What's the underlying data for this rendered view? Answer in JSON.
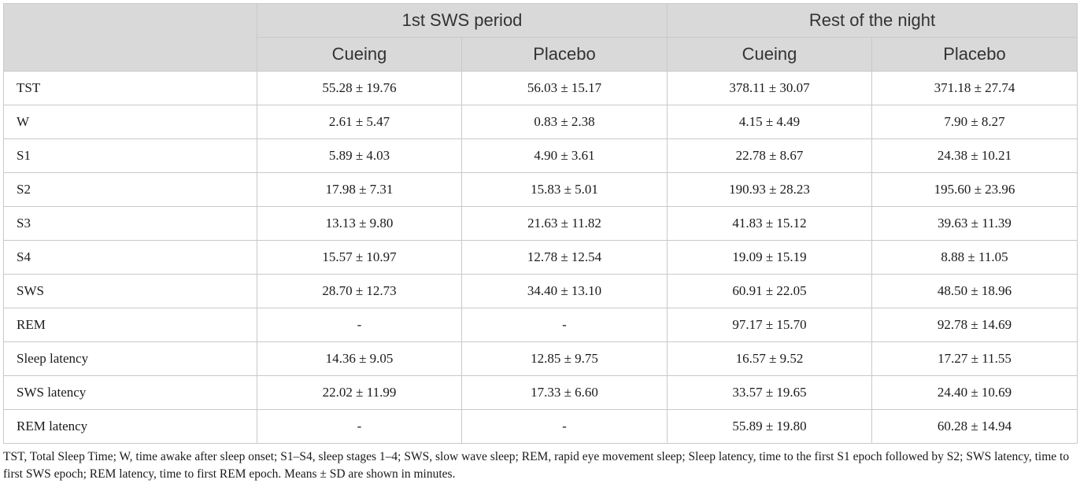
{
  "table": {
    "groups": [
      "1st SWS period",
      "Rest of the night"
    ],
    "subheaders": [
      "Cueing",
      "Placebo",
      "Cueing",
      "Placebo"
    ],
    "rows": [
      {
        "label": "TST",
        "values": [
          "55.28 ± 19.76",
          "56.03 ± 15.17",
          "378.11 ± 30.07",
          "371.18 ± 27.74"
        ]
      },
      {
        "label": "W",
        "values": [
          "2.61 ± 5.47",
          "0.83 ± 2.38",
          "4.15 ± 4.49",
          "7.90 ± 8.27"
        ]
      },
      {
        "label": "S1",
        "values": [
          "5.89 ± 4.03",
          "4.90 ± 3.61",
          "22.78 ± 8.67",
          "24.38 ± 10.21"
        ]
      },
      {
        "label": "S2",
        "values": [
          "17.98 ± 7.31",
          "15.83 ± 5.01",
          "190.93 ± 28.23",
          "195.60 ± 23.96"
        ]
      },
      {
        "label": "S3",
        "values": [
          "13.13 ± 9.80",
          "21.63 ± 11.82",
          "41.83 ± 15.12",
          "39.63 ± 11.39"
        ]
      },
      {
        "label": "S4",
        "values": [
          "15.57 ± 10.97",
          "12.78 ± 12.54",
          "19.09 ± 15.19",
          "8.88 ± 11.05"
        ]
      },
      {
        "label": "SWS",
        "values": [
          "28.70 ± 12.73",
          "34.40 ± 13.10",
          "60.91 ± 22.05",
          "48.50 ± 18.96"
        ]
      },
      {
        "label": "REM",
        "values": [
          "-",
          "-",
          "97.17 ± 15.70",
          "92.78 ± 14.69"
        ]
      },
      {
        "label": "Sleep latency",
        "values": [
          "14.36 ± 9.05",
          "12.85 ± 9.75",
          "16.57 ± 9.52",
          "17.27 ± 11.55"
        ]
      },
      {
        "label": "SWS latency",
        "values": [
          "22.02 ± 11.99",
          "17.33 ± 6.60",
          "33.57 ± 19.65",
          "24.40 ± 10.69"
        ]
      },
      {
        "label": "REM latency",
        "values": [
          "-",
          "-",
          "55.89 ± 19.80",
          "60.28 ± 14.94"
        ]
      }
    ]
  },
  "footnote": "TST, Total Sleep Time; W, time awake after sleep onset; S1–S4, sleep stages 1–4; SWS, slow wave sleep; REM, rapid eye movement sleep; Sleep latency, time to the first S1 epoch followed by S2; SWS latency, time to first SWS epoch; REM latency, time to first REM epoch. Means ± SD are shown in minutes."
}
